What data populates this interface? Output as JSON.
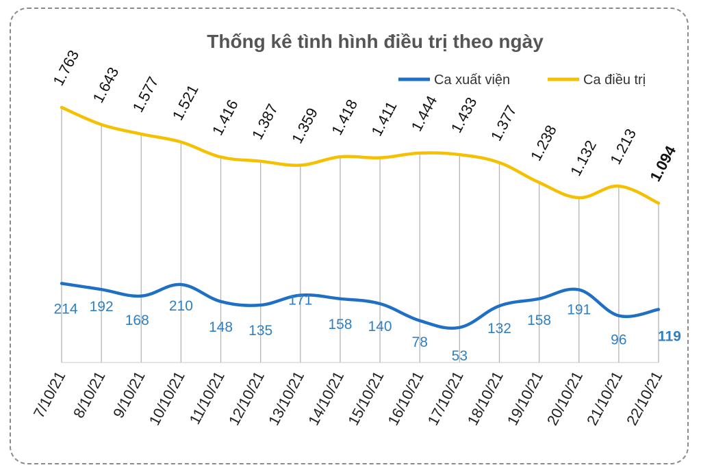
{
  "chart_data": {
    "type": "line",
    "title": "Thống kê tình hình điều trị theo ngày",
    "categories": [
      "7/10/21",
      "8/10/21",
      "9/10/21",
      "10/10/21",
      "11/10/21",
      "12/10/21",
      "13/10/21",
      "14/10/21",
      "15/10/21",
      "16/10/21",
      "17/10/21",
      "18/10/21",
      "19/10/21",
      "20/10/21",
      "21/10/21",
      "22/10/21"
    ],
    "series": [
      {
        "name": "Ca xuất viện",
        "color": "#1f6fc5",
        "label_color": "#2f7fc1",
        "values": [
          214,
          192,
          168,
          210,
          148,
          135,
          171,
          158,
          140,
          78,
          53,
          132,
          158,
          191,
          96,
          119
        ],
        "labels": [
          "214",
          "192",
          "168",
          "210",
          "148",
          "135",
          "171",
          "158",
          "140",
          "78",
          "53",
          "132",
          "158",
          "191",
          "96",
          "119"
        ]
      },
      {
        "name": "Ca điều trị",
        "color": "#f5c000",
        "label_color": "#111111",
        "values": [
          1763,
          1643,
          1577,
          1521,
          1416,
          1387,
          1359,
          1418,
          1411,
          1444,
          1433,
          1377,
          1238,
          1132,
          1213,
          1094
        ],
        "labels": [
          "1.763",
          "1.643",
          "1.577",
          "1.521",
          "1.416",
          "1.387",
          "1.359",
          "1.418",
          "1.411",
          "1.444",
          "1.433",
          "1.377",
          "1.238",
          "1.132",
          "1.213",
          "1.094"
        ]
      }
    ],
    "highlight_color": "#e8141c",
    "highlight_index": 15,
    "black_label_index_series0": 3,
    "legend_position": "top-right",
    "grid": "vertical lines at categories"
  }
}
